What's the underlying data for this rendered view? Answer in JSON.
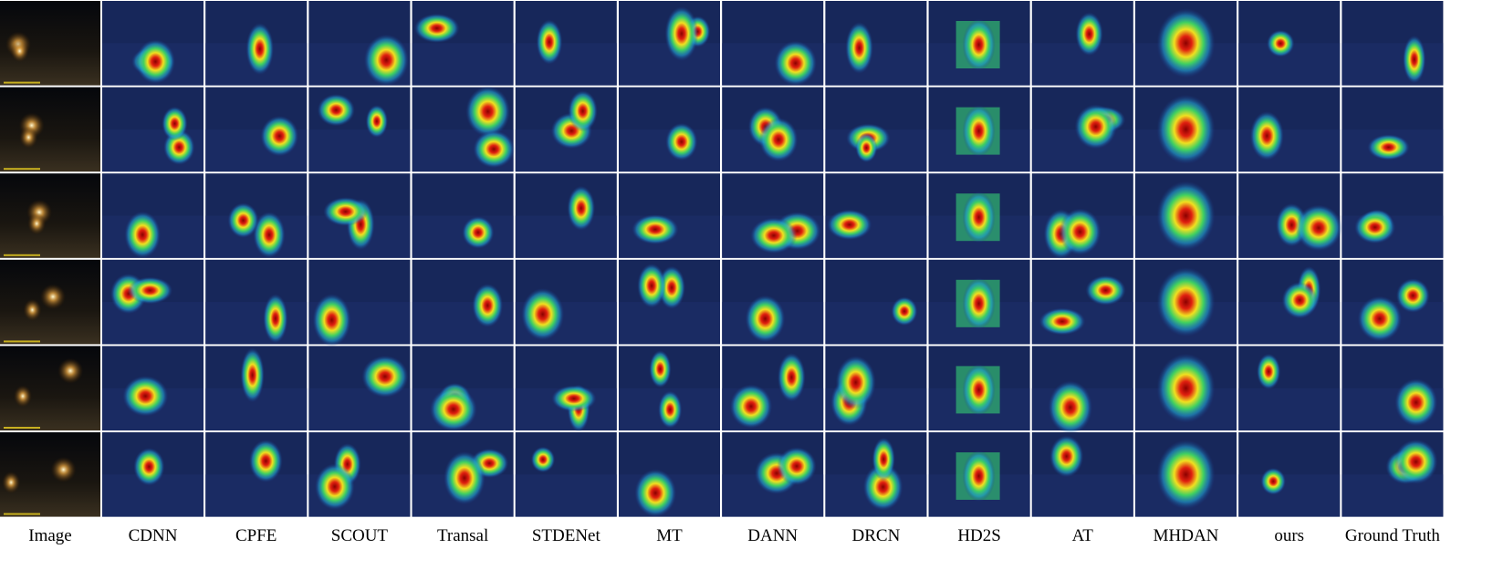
{
  "columns": [
    "Image",
    "CDNN",
    "CPFE",
    "SCOUT",
    "Transal",
    "STDENet",
    "MT",
    "DANN",
    "DRCN",
    "HD2S",
    "AT",
    "MHDAN",
    "ours",
    "Ground Truth"
  ]
}
